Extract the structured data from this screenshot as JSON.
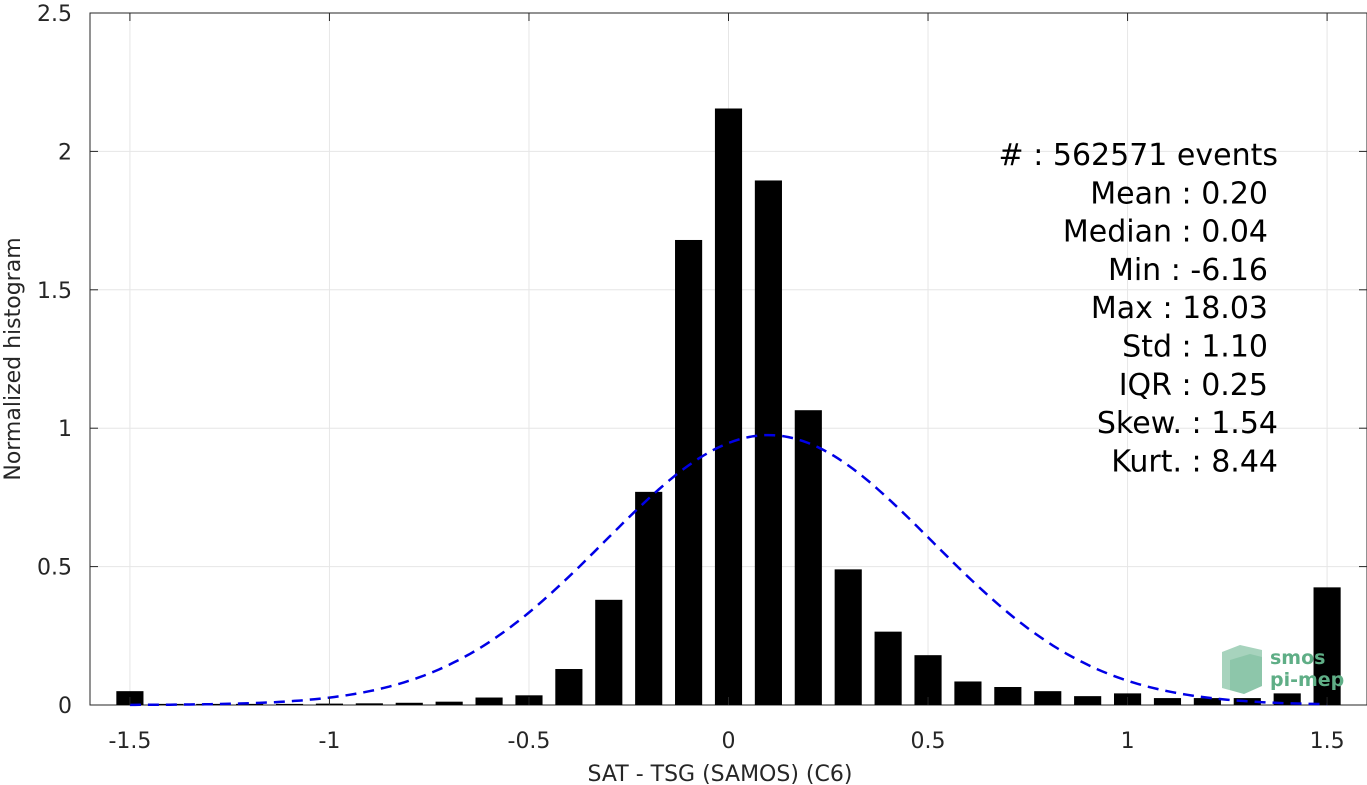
{
  "chart_data": {
    "type": "bar",
    "xlabel": "SAT - TSG (SAMOS) (C6)",
    "ylabel": "Normalized histogram",
    "xlim": [
      -1.6,
      1.6
    ],
    "ylim": [
      0,
      2.5
    ],
    "xticks": [
      -1.5,
      -1,
      -0.5,
      0,
      0.5,
      1,
      1.5
    ],
    "xtick_labels": [
      "-1.5",
      "-1",
      "-0.5",
      "0",
      "0.5",
      "1",
      "1.5"
    ],
    "yticks": [
      0,
      0.5,
      1,
      1.5,
      2,
      2.5
    ],
    "ytick_labels": [
      "0",
      "0.5",
      "1",
      "1.5",
      "2",
      "2.5"
    ],
    "grid": true,
    "bar_color": "#000000",
    "bars": {
      "x": [
        -1.5,
        -1.4,
        -1.3,
        -1.2,
        -1.1,
        -1.0,
        -0.9,
        -0.8,
        -0.7,
        -0.6,
        -0.5,
        -0.4,
        -0.3,
        -0.2,
        -0.1,
        0.0,
        0.1,
        0.2,
        0.3,
        0.4,
        0.5,
        0.6,
        0.7,
        0.8,
        0.9,
        1.0,
        1.1,
        1.2,
        1.3,
        1.4,
        1.5
      ],
      "values": [
        0.05,
        0.004,
        0.004,
        0.004,
        0.004,
        0.005,
        0.006,
        0.008,
        0.012,
        0.027,
        0.035,
        0.13,
        0.38,
        0.77,
        1.68,
        2.155,
        1.895,
        1.065,
        0.49,
        0.265,
        0.18,
        0.085,
        0.065,
        0.05,
        0.032,
        0.042,
        0.025,
        0.025,
        0.025,
        0.042,
        0.425
      ]
    },
    "fit_curve": {
      "style": "dashed",
      "color": "#0000e6",
      "mean": 0.1,
      "std": 0.41,
      "peak": 0.975,
      "x_range": [
        -1.5,
        1.5
      ]
    },
    "annotations": [
      {
        "label": "#  ",
        "value": ": 562571 events"
      },
      {
        "label": "Mean ",
        "value": ": 0.20"
      },
      {
        "label": "Median ",
        "value": ": 0.04"
      },
      {
        "label": "Min ",
        "value": ": -6.16"
      },
      {
        "label": "Max ",
        "value": ": 18.03"
      },
      {
        "label": "Std ",
        "value": ": 1.10"
      },
      {
        "label": "IQR ",
        "value": ": 0.25"
      },
      {
        "label": "Skew. ",
        "value": ": 1.54"
      },
      {
        "label": "Kurt. ",
        "value": ": 8.44"
      }
    ]
  },
  "logo": {
    "line1": "smos",
    "line2": "pi-mep",
    "color": "#5fae86"
  }
}
